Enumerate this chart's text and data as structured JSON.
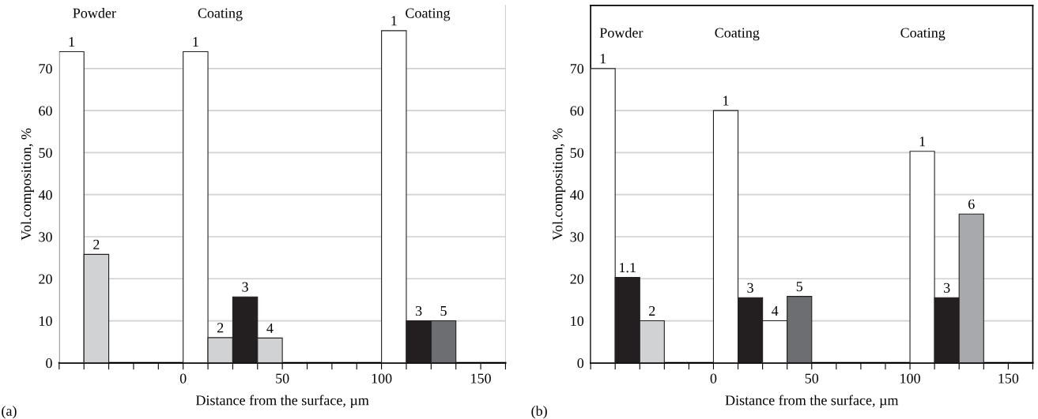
{
  "chart_data": [
    {
      "type": "bar",
      "xlabel": "Distance from the surface, µm",
      "ylabel": "Vol.composition, %",
      "series": [
        {
          "name": "1",
          "color": "#ffffff",
          "x": [
            -56.25,
            6.25,
            106.25
          ],
          "values": [
            74,
            74,
            79
          ]
        },
        {
          "name": "2",
          "color": "#d1d2d4",
          "x": [
            -43.75,
            18.75
          ],
          "values": [
            25.8,
            6
          ]
        },
        {
          "name": "3",
          "color": "#231f20",
          "x": [
            31.25,
            118.75
          ],
          "values": [
            15.7,
            10
          ]
        },
        {
          "name": "4",
          "color": "#d1d2d4",
          "x": [
            43.75
          ],
          "values": [
            5.9
          ]
        },
        {
          "name": "5",
          "color": "#6d6e71",
          "x": [
            131.25
          ],
          "values": [
            10
          ]
        }
      ],
      "xlim": [
        -62.5,
        162.5
      ],
      "xticks": [
        {
          "value": -62.5,
          "label": null
        },
        {
          "value": -50,
          "label": null
        },
        {
          "value": -37.5,
          "label": null
        },
        {
          "value": -25,
          "label": null
        },
        {
          "value": -12.5,
          "label": null
        },
        0,
        {
          "value": 12.5,
          "label": null
        },
        {
          "value": 25,
          "label": null
        },
        {
          "value": 37.5,
          "label": null
        },
        50,
        {
          "value": 62.5,
          "label": null
        },
        {
          "value": 75,
          "label": null
        },
        {
          "value": 87.5,
          "label": null
        },
        100,
        {
          "value": 112.5,
          "label": null
        },
        {
          "value": 125,
          "label": null
        },
        {
          "value": 137.5,
          "label": null
        },
        150,
        {
          "value": 162.5,
          "label": null
        }
      ],
      "ylim": [
        0,
        85
      ],
      "yticks": [
        0,
        10,
        20,
        30,
        40,
        50,
        60,
        70
      ],
      "grid": "y",
      "annotations": [
        "Powder",
        "Coating",
        "Coating",
        "(a)"
      ]
    },
    {
      "type": "bar",
      "xlabel": "Distance from the surface, µm",
      "ylabel": "Vol.composition, %",
      "series": [
        {
          "name": "1",
          "color": "#ffffff",
          "x": [
            -56.25,
            6.25,
            106.25
          ],
          "values": [
            70,
            60,
            50.3
          ]
        },
        {
          "name": "1.1",
          "color": "#231f20",
          "x": [
            -43.75
          ],
          "values": [
            20.3
          ]
        },
        {
          "name": "2",
          "color": "#d1d2d4",
          "x": [
            -31.25
          ],
          "values": [
            10
          ]
        },
        {
          "name": "3",
          "color": "#231f20",
          "x": [
            18.75,
            118.75
          ],
          "values": [
            15.5,
            15.5
          ]
        },
        {
          "name": "4",
          "color": "#ffffff",
          "x": [
            31.25
          ],
          "values": [
            10
          ]
        },
        {
          "name": "5",
          "color": "#6d6e71",
          "x": [
            43.75
          ],
          "values": [
            15.8
          ]
        },
        {
          "name": "6",
          "color": "#a7a9ac",
          "x": [
            131.25
          ],
          "values": [
            35.4
          ]
        }
      ],
      "xlim": [
        -62.5,
        162.5
      ],
      "xticks": [
        {
          "value": -62.5,
          "label": null
        },
        {
          "value": -50,
          "label": null
        },
        {
          "value": -37.5,
          "label": null
        },
        {
          "value": -25,
          "label": null
        },
        {
          "value": -12.5,
          "label": null
        },
        0,
        {
          "value": 12.5,
          "label": null
        },
        {
          "value": 25,
          "label": null
        },
        {
          "value": 37.5,
          "label": null
        },
        50,
        {
          "value": 62.5,
          "label": null
        },
        {
          "value": 75,
          "label": null
        },
        {
          "value": 87.5,
          "label": null
        },
        100,
        {
          "value": 112.5,
          "label": null
        },
        {
          "value": 125,
          "label": null
        },
        {
          "value": 137.5,
          "label": null
        },
        150,
        {
          "value": 162.5,
          "label": null
        }
      ],
      "ylim": [
        0,
        85
      ],
      "yticks": [
        0,
        10,
        20,
        30,
        40,
        50,
        60,
        70
      ],
      "grid": "y",
      "annotations": [
        "Powder",
        "Coating",
        "Coating",
        "(b)"
      ]
    }
  ]
}
